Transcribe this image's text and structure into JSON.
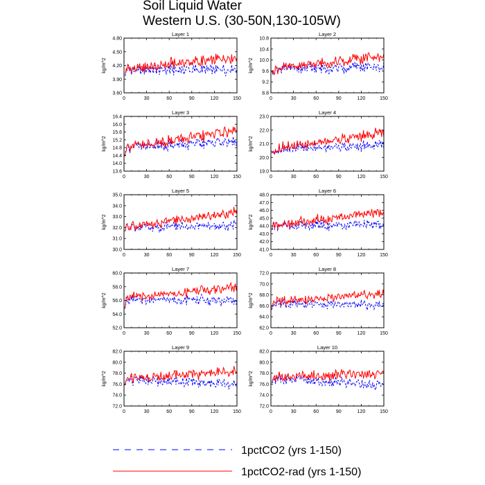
{
  "title": {
    "line1": "Soil Liquid Water",
    "line2": "Western U.S. (30-50N,130-105W)"
  },
  "colors": {
    "series_1pctCO2": "#0000ff",
    "series_1pctCO2_rad": "#ff0000",
    "axis": "#000000"
  },
  "legend": {
    "placement": "bottom-center",
    "entries": [
      {
        "label": "1pctCO2 (yrs 1-150)",
        "color": "#0000ff",
        "style": "dashed"
      },
      {
        "label": "1pctCO2-rad (yrs 1-150)",
        "color": "#ff0000",
        "style": "solid"
      }
    ]
  },
  "chart_data": [
    {
      "type": "line",
      "title": "Layer 1",
      "xlabel": "",
      "ylabel": "kg/m^2",
      "xlim": [
        0,
        150
      ],
      "ylim": [
        3.6,
        4.8
      ],
      "xticks": [
        0,
        30,
        60,
        90,
        120,
        150
      ],
      "yticks": [
        "3.60",
        "3.90",
        "4.20",
        "4.50",
        "4.80"
      ],
      "series": [
        {
          "name": "1pctCO2 (yrs 1-150)",
          "base": 4.1,
          "trend": 0.0,
          "amp": 0.2
        },
        {
          "name": "1pctCO2-rad (yrs 1-150)",
          "base": 4.12,
          "trend": 0.25,
          "amp": 0.2
        }
      ]
    },
    {
      "type": "line",
      "title": "Layer 2",
      "xlabel": "",
      "ylabel": "kg/m^2",
      "xlim": [
        0,
        150
      ],
      "ylim": [
        8.8,
        10.8
      ],
      "xticks": [
        0,
        30,
        60,
        90,
        120,
        150
      ],
      "yticks": [
        "8.8",
        "9.2",
        "9.6",
        "10.0",
        "10.4",
        "10.8"
      ],
      "series": [
        {
          "name": "1pctCO2 (yrs 1-150)",
          "base": 9.65,
          "trend": 0.1,
          "amp": 0.32
        },
        {
          "name": "1pctCO2-rad (yrs 1-150)",
          "base": 9.65,
          "trend": 0.5,
          "amp": 0.32
        }
      ]
    },
    {
      "type": "line",
      "title": "Layer 3",
      "xlabel": "",
      "ylabel": "kg/m^2",
      "xlim": [
        0,
        150
      ],
      "ylim": [
        13.6,
        16.4
      ],
      "xticks": [
        0,
        30,
        60,
        90,
        120,
        150
      ],
      "yticks": [
        "13.6",
        "14.0",
        "14.4",
        "14.8",
        "15.2",
        "15.6",
        "16.0",
        "16.4"
      ],
      "series": [
        {
          "name": "1pctCO2 (yrs 1-150)",
          "base": 14.8,
          "trend": 0.3,
          "amp": 0.45
        },
        {
          "name": "1pctCO2-rad (yrs 1-150)",
          "base": 14.8,
          "trend": 0.9,
          "amp": 0.45
        }
      ]
    },
    {
      "type": "line",
      "title": "Layer 4",
      "xlabel": "",
      "ylabel": "kg/m^2",
      "xlim": [
        0,
        150
      ],
      "ylim": [
        19.0,
        23.0
      ],
      "xticks": [
        0,
        30,
        60,
        90,
        120,
        150
      ],
      "yticks": [
        "19.0",
        "20.0",
        "21.0",
        "22.0",
        "23.0"
      ],
      "series": [
        {
          "name": "1pctCO2 (yrs 1-150)",
          "base": 20.6,
          "trend": 0.3,
          "amp": 0.6
        },
        {
          "name": "1pctCO2-rad (yrs 1-150)",
          "base": 20.6,
          "trend": 1.2,
          "amp": 0.6
        }
      ]
    },
    {
      "type": "line",
      "title": "Layer 5",
      "xlabel": "",
      "ylabel": "kg/m^2",
      "xlim": [
        0,
        150
      ],
      "ylim": [
        30.0,
        35.0
      ],
      "xticks": [
        0,
        30,
        60,
        90,
        120,
        150
      ],
      "yticks": [
        "30.0",
        "31.0",
        "32.0",
        "33.0",
        "34.0",
        "35.0"
      ],
      "series": [
        {
          "name": "1pctCO2 (yrs 1-150)",
          "base": 32.0,
          "trend": 0.2,
          "amp": 0.75
        },
        {
          "name": "1pctCO2-rad (yrs 1-150)",
          "base": 32.0,
          "trend": 1.4,
          "amp": 0.75
        }
      ]
    },
    {
      "type": "line",
      "title": "Layer 6",
      "xlabel": "",
      "ylabel": "kg/m^2",
      "xlim": [
        0,
        150
      ],
      "ylim": [
        41.0,
        48.0
      ],
      "xticks": [
        0,
        30,
        60,
        90,
        120,
        150
      ],
      "yticks": [
        "41.0",
        "42.0",
        "43.0",
        "44.0",
        "45.0",
        "46.0",
        "47.0",
        "48.0"
      ],
      "series": [
        {
          "name": "1pctCO2 (yrs 1-150)",
          "base": 44.0,
          "trend": 0.2,
          "amp": 1.0
        },
        {
          "name": "1pctCO2-rad (yrs 1-150)",
          "base": 44.0,
          "trend": 1.8,
          "amp": 1.0
        }
      ]
    },
    {
      "type": "line",
      "title": "Layer 7",
      "xlabel": "",
      "ylabel": "kg/m^2",
      "xlim": [
        0,
        150
      ],
      "ylim": [
        52.0,
        60.0
      ],
      "xticks": [
        0,
        30,
        60,
        90,
        120,
        150
      ],
      "yticks": [
        "52.0",
        "54.0",
        "56.0",
        "58.0",
        "60.0"
      ],
      "series": [
        {
          "name": "1pctCO2 (yrs 1-150)",
          "base": 56.0,
          "trend": 0.0,
          "amp": 1.2
        },
        {
          "name": "1pctCO2-rad (yrs 1-150)",
          "base": 56.2,
          "trend": 1.8,
          "amp": 1.2
        }
      ]
    },
    {
      "type": "line",
      "title": "Layer 8",
      "xlabel": "",
      "ylabel": "kg/m^2",
      "xlim": [
        0,
        150
      ],
      "ylim": [
        62.0,
        72.0
      ],
      "xticks": [
        0,
        30,
        60,
        90,
        120,
        150
      ],
      "yticks": [
        "62.0",
        "64.0",
        "66.0",
        "68.0",
        "70.0",
        "72.0"
      ],
      "series": [
        {
          "name": "1pctCO2 (yrs 1-150)",
          "base": 66.5,
          "trend": -0.5,
          "amp": 1.3
        },
        {
          "name": "1pctCO2-rad (yrs 1-150)",
          "base": 66.8,
          "trend": 1.3,
          "amp": 1.3
        }
      ]
    },
    {
      "type": "line",
      "title": "Layer 9",
      "xlabel": "",
      "ylabel": "kg/m^2",
      "xlim": [
        0,
        150
      ],
      "ylim": [
        72.0,
        82.0
      ],
      "xticks": [
        0,
        30,
        60,
        90,
        120,
        150
      ],
      "yticks": [
        "72.0",
        "74.0",
        "76.0",
        "78.0",
        "80.0",
        "82.0"
      ],
      "series": [
        {
          "name": "1pctCO2 (yrs 1-150)",
          "base": 77.0,
          "trend": -1.2,
          "amp": 1.6
        },
        {
          "name": "1pctCO2-rad (yrs 1-150)",
          "base": 77.2,
          "trend": 1.0,
          "amp": 1.6
        }
      ]
    },
    {
      "type": "line",
      "title": "Layer 10",
      "xlabel": "",
      "ylabel": "kg/m^2",
      "xlim": [
        0,
        150
      ],
      "ylim": [
        72.0,
        82.0
      ],
      "xticks": [
        0,
        30,
        60,
        90,
        120,
        150
      ],
      "yticks": [
        "72.0",
        "74.0",
        "76.0",
        "78.0",
        "80.0",
        "82.0"
      ],
      "series": [
        {
          "name": "1pctCO2 (yrs 1-150)",
          "base": 77.0,
          "trend": -1.2,
          "amp": 1.6
        },
        {
          "name": "1pctCO2-rad (yrs 1-150)",
          "base": 77.2,
          "trend": 0.8,
          "amp": 1.6
        }
      ]
    }
  ]
}
